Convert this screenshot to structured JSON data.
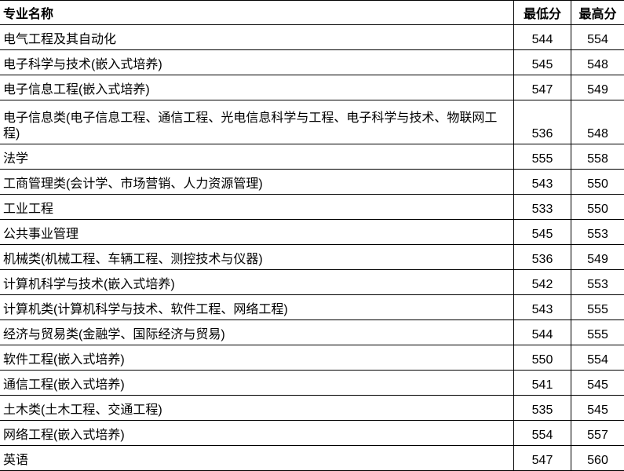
{
  "table": {
    "headers": [
      "专业名称",
      "最低分",
      "最高分"
    ],
    "rows": [
      [
        "电气工程及其自动化",
        "544",
        "554"
      ],
      [
        "电子科学与技术(嵌入式培养)",
        "545",
        "548"
      ],
      [
        "电子信息工程(嵌入式培养)",
        "547",
        "549"
      ],
      [
        "电子信息类(电子信息工程、通信工程、光电信息科学与工程、电子科学与技术、物联网工程)",
        "536",
        "548"
      ],
      [
        "法学",
        "555",
        "558"
      ],
      [
        "工商管理类(会计学、市场营销、人力资源管理)",
        "543",
        "550"
      ],
      [
        "工业工程",
        "533",
        "550"
      ],
      [
        "公共事业管理",
        "545",
        "553"
      ],
      [
        "机械类(机械工程、车辆工程、测控技术与仪器)",
        "536",
        "549"
      ],
      [
        "计算机科学与技术(嵌入式培养)",
        "542",
        "553"
      ],
      [
        "计算机类(计算机科学与技术、软件工程、网络工程)",
        "543",
        "555"
      ],
      [
        "经济与贸易类(金融学、国际经济与贸易)",
        "544",
        "555"
      ],
      [
        "软件工程(嵌入式培养)",
        "550",
        "554"
      ],
      [
        "通信工程(嵌入式培养)",
        "541",
        "545"
      ],
      [
        "土木类(土木工程、交通工程)",
        "535",
        "545"
      ],
      [
        "网络工程(嵌入式培养)",
        "554",
        "557"
      ],
      [
        "英语",
        "547",
        "560"
      ]
    ]
  }
}
